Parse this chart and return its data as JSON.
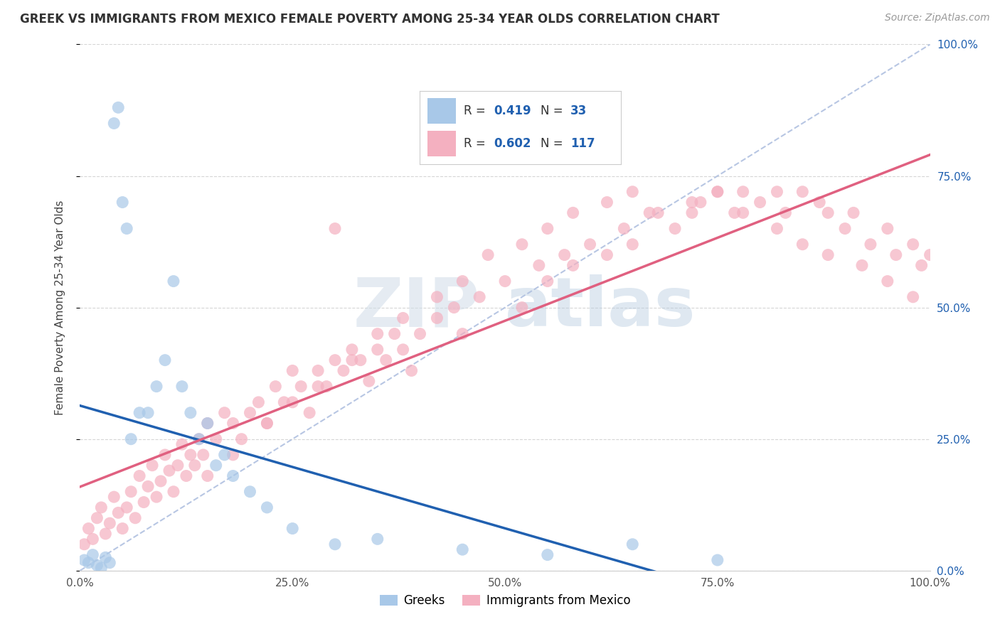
{
  "title": "GREEK VS IMMIGRANTS FROM MEXICO FEMALE POVERTY AMONG 25-34 YEAR OLDS CORRELATION CHART",
  "source": "Source: ZipAtlas.com",
  "ylabel": "Female Poverty Among 25-34 Year Olds",
  "greek_R": 0.419,
  "greek_N": 33,
  "mexico_R": 0.602,
  "mexico_N": 117,
  "greek_color": "#a8c8e8",
  "mexico_color": "#f4b0c0",
  "greek_line_color": "#2060b0",
  "mexico_line_color": "#e06080",
  "diag_color": "#b0c0e0",
  "background": "#ffffff",
  "greek_x": [
    0.5,
    1.0,
    1.5,
    2.0,
    2.5,
    3.0,
    3.5,
    4.0,
    4.5,
    5.0,
    5.5,
    6.0,
    7.0,
    8.0,
    9.0,
    10.0,
    11.0,
    12.0,
    13.0,
    14.0,
    15.0,
    16.0,
    17.0,
    18.0,
    20.0,
    22.0,
    25.0,
    30.0,
    35.0,
    45.0,
    55.0,
    65.0,
    75.0
  ],
  "greek_y": [
    2.0,
    1.5,
    3.0,
    1.0,
    0.5,
    2.5,
    1.5,
    85.0,
    88.0,
    70.0,
    65.0,
    25.0,
    30.0,
    30.0,
    35.0,
    40.0,
    55.0,
    35.0,
    30.0,
    25.0,
    28.0,
    20.0,
    22.0,
    18.0,
    15.0,
    12.0,
    8.0,
    5.0,
    6.0,
    4.0,
    3.0,
    5.0,
    2.0
  ],
  "mexico_x": [
    0.5,
    1.0,
    1.5,
    2.0,
    2.5,
    3.0,
    3.5,
    4.0,
    4.5,
    5.0,
    5.5,
    6.0,
    6.5,
    7.0,
    7.5,
    8.0,
    8.5,
    9.0,
    9.5,
    10.0,
    10.5,
    11.0,
    11.5,
    12.0,
    12.5,
    13.0,
    13.5,
    14.0,
    14.5,
    15.0,
    16.0,
    17.0,
    18.0,
    19.0,
    20.0,
    21.0,
    22.0,
    23.0,
    24.0,
    25.0,
    26.0,
    27.0,
    28.0,
    29.0,
    30.0,
    31.0,
    32.0,
    33.0,
    34.0,
    35.0,
    36.0,
    37.0,
    38.0,
    39.0,
    40.0,
    42.0,
    44.0,
    45.0,
    47.0,
    50.0,
    52.0,
    54.0,
    55.0,
    57.0,
    58.0,
    60.0,
    62.0,
    64.0,
    65.0,
    67.0,
    70.0,
    72.0,
    73.0,
    75.0,
    77.0,
    78.0,
    80.0,
    82.0,
    83.0,
    85.0,
    87.0,
    88.0,
    90.0,
    91.0,
    93.0,
    95.0,
    96.0,
    98.0,
    99.0,
    100.0,
    15.0,
    18.0,
    22.0,
    25.0,
    28.0,
    32.0,
    35.0,
    38.0,
    42.0,
    45.0,
    48.0,
    52.0,
    55.0,
    58.0,
    62.0,
    65.0,
    68.0,
    72.0,
    75.0,
    78.0,
    82.0,
    85.0,
    88.0,
    92.0,
    95.0,
    98.0,
    30.0
  ],
  "mexico_y": [
    5.0,
    8.0,
    6.0,
    10.0,
    12.0,
    7.0,
    9.0,
    14.0,
    11.0,
    8.0,
    12.0,
    15.0,
    10.0,
    18.0,
    13.0,
    16.0,
    20.0,
    14.0,
    17.0,
    22.0,
    19.0,
    15.0,
    20.0,
    24.0,
    18.0,
    22.0,
    20.0,
    25.0,
    22.0,
    28.0,
    25.0,
    30.0,
    28.0,
    25.0,
    30.0,
    32.0,
    28.0,
    35.0,
    32.0,
    38.0,
    35.0,
    30.0,
    38.0,
    35.0,
    40.0,
    38.0,
    42.0,
    40.0,
    36.0,
    42.0,
    40.0,
    45.0,
    42.0,
    38.0,
    45.0,
    48.0,
    50.0,
    45.0,
    52.0,
    55.0,
    50.0,
    58.0,
    55.0,
    60.0,
    58.0,
    62.0,
    60.0,
    65.0,
    62.0,
    68.0,
    65.0,
    68.0,
    70.0,
    72.0,
    68.0,
    72.0,
    70.0,
    72.0,
    68.0,
    72.0,
    70.0,
    68.0,
    65.0,
    68.0,
    62.0,
    65.0,
    60.0,
    62.0,
    58.0,
    60.0,
    18.0,
    22.0,
    28.0,
    32.0,
    35.0,
    40.0,
    45.0,
    48.0,
    52.0,
    55.0,
    60.0,
    62.0,
    65.0,
    68.0,
    70.0,
    72.0,
    68.0,
    70.0,
    72.0,
    68.0,
    65.0,
    62.0,
    60.0,
    58.0,
    55.0,
    52.0,
    65.0
  ],
  "watermark_zip": "ZIP",
  "watermark_atlas": "atlas",
  "figsize": [
    14.06,
    8.92
  ],
  "dpi": 100
}
